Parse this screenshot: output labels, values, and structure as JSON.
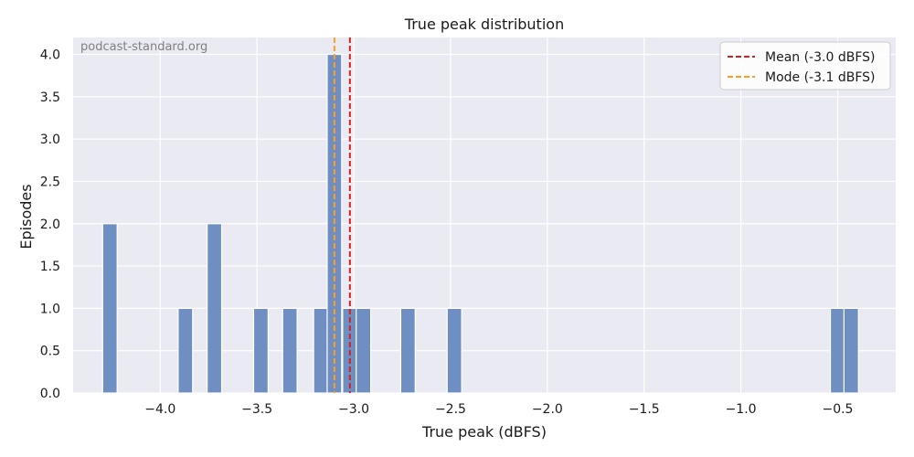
{
  "chart_data": {
    "type": "bar",
    "title": "True peak distribution",
    "xlabel": "True peak (dBFS)",
    "ylabel": "Episodes",
    "watermark": "podcast-standard.org",
    "xlim": [
      -4.45,
      -0.2
    ],
    "ylim": [
      0,
      4.2
    ],
    "bin_width": 0.075,
    "x_ticks": [
      -4.0,
      -3.5,
      -3.0,
      -2.5,
      -2.0,
      -1.5,
      -1.0,
      -0.5
    ],
    "x_tick_labels": [
      "−4.0",
      "−3.5",
      "−3.0",
      "−2.5",
      "−2.0",
      "−1.5",
      "−1.0",
      "−0.5"
    ],
    "y_ticks": [
      0,
      0.5,
      1.0,
      1.5,
      2.0,
      2.5,
      3.0,
      3.5,
      4.0
    ],
    "y_tick_labels": [
      "0.0",
      "0.5",
      "1.0",
      "1.5",
      "2.0",
      "2.5",
      "3.0",
      "3.5",
      "4.0"
    ],
    "bins": [
      {
        "x": -4.26,
        "count": 2
      },
      {
        "x": -3.87,
        "count": 1
      },
      {
        "x": -3.72,
        "count": 2
      },
      {
        "x": -3.48,
        "count": 1
      },
      {
        "x": -3.33,
        "count": 1
      },
      {
        "x": -3.17,
        "count": 1
      },
      {
        "x": -3.1,
        "count": 4
      },
      {
        "x": -3.02,
        "count": 1
      },
      {
        "x": -2.95,
        "count": 1
      },
      {
        "x": -2.72,
        "count": 1
      },
      {
        "x": -2.48,
        "count": 1
      },
      {
        "x": -0.5,
        "count": 1
      },
      {
        "x": -0.43,
        "count": 1
      }
    ],
    "lines": [
      {
        "name": "Mean (-3.0 dBFS)",
        "x": -3.02,
        "color": "#d62020"
      },
      {
        "name": "Mode (-3.1 dBFS)",
        "x": -3.1,
        "color": "#ff9f1c"
      }
    ],
    "bar_color": "#6f8fc3",
    "background_color": "#eaeaf2",
    "grid": true,
    "legend_position": "top-right"
  }
}
